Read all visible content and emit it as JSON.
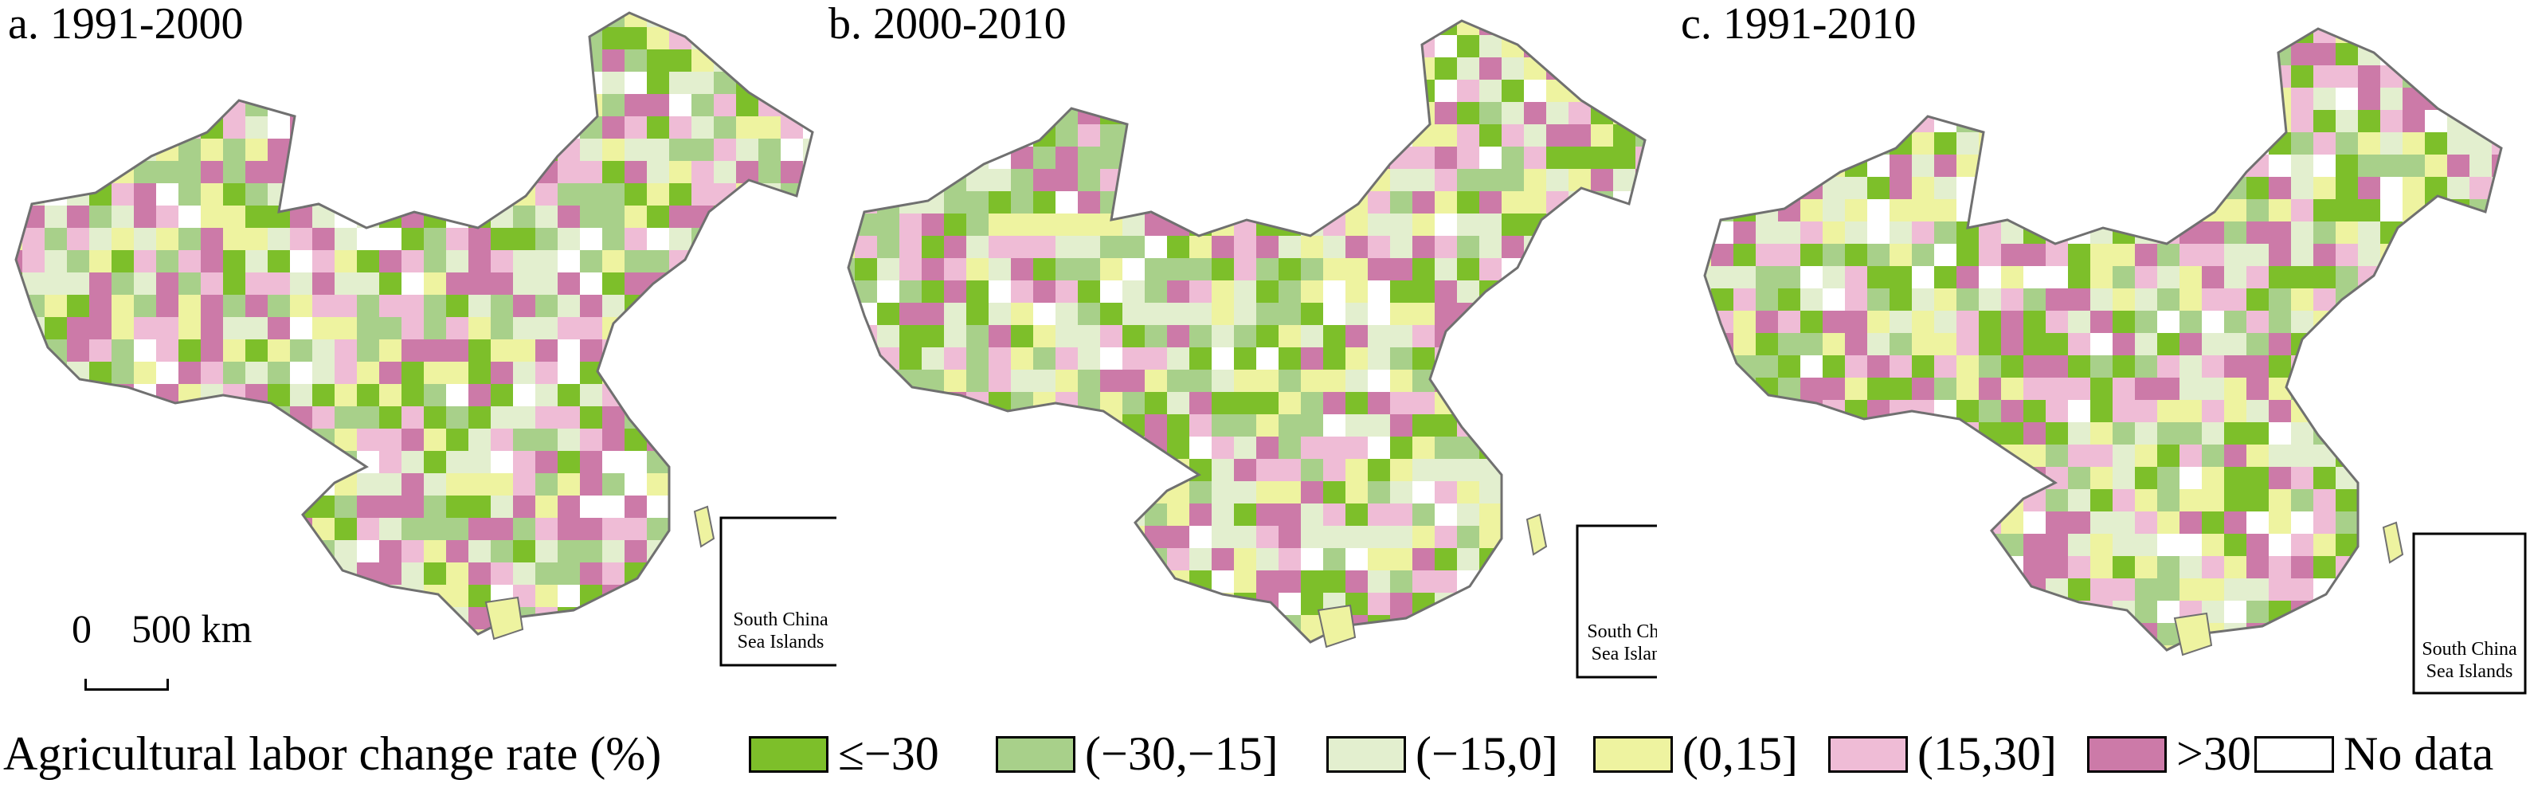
{
  "panels": [
    {
      "id": "a",
      "title": "a. 1991-2000",
      "inset_label_line1": "South China",
      "inset_label_line2": "Sea Islands"
    },
    {
      "id": "b",
      "title": "b. 2000-2010",
      "inset_label_line1": "South China",
      "inset_label_line2": "Sea Islands"
    },
    {
      "id": "c",
      "title": "c. 1991-2010",
      "inset_label_line1": "South China",
      "inset_label_line2": "Sea Islands"
    }
  ],
  "scale_bar": {
    "label": "0    500 km"
  },
  "legend": {
    "title": "Agricultural labor change rate (%)",
    "classes": [
      {
        "label": "≤−30",
        "color": "#7dbf2a"
      },
      {
        "label": "(−30,−15]",
        "color": "#a8d08a"
      },
      {
        "label": "(−15,0]",
        "color": "#e3efcf"
      },
      {
        "label": "(0,15]",
        "color": "#eef3a0"
      },
      {
        "label": "(15,30]",
        "color": "#efbcd6"
      },
      {
        "label": ">30",
        "color": "#cc7aa8"
      },
      {
        "label": "No data",
        "color": "#ffffff"
      }
    ]
  },
  "boundary_color": "#707070"
}
